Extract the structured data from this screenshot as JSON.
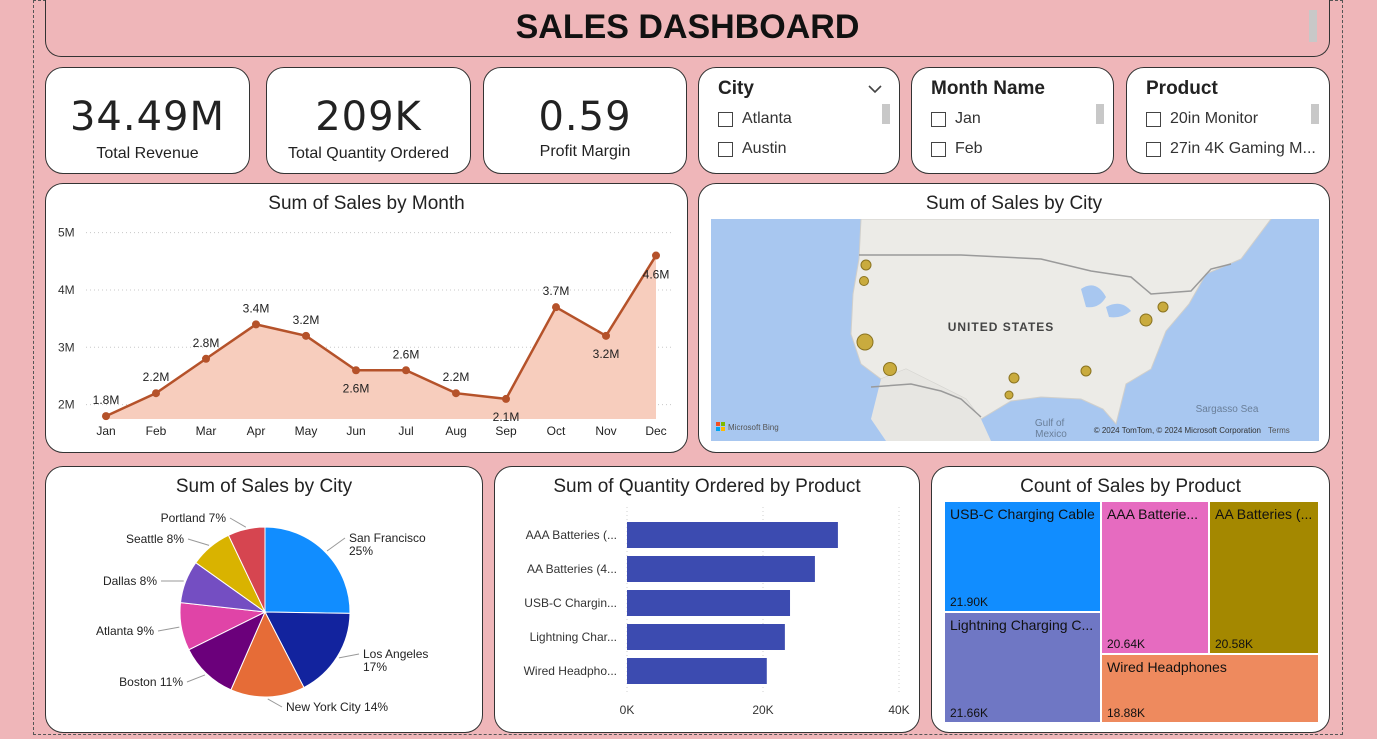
{
  "header": {
    "title": "SALES DASHBOARD"
  },
  "kpis": [
    {
      "value": "34.49M",
      "label": "Total Revenue"
    },
    {
      "value": "209K",
      "label": "Total Quantity Ordered"
    },
    {
      "value": "0.59",
      "label": "Profit Margin"
    }
  ],
  "slicers": {
    "city": {
      "title": "City",
      "items": [
        "Atlanta",
        "Austin"
      ]
    },
    "month": {
      "title": "Month Name",
      "items": [
        "Jan",
        "Feb"
      ]
    },
    "product": {
      "title": "Product",
      "items": [
        "20in Monitor",
        "27in 4K Gaming M..."
      ]
    }
  },
  "map": {
    "title": "Sum of Sales by City",
    "country_label": "UNITED STATES",
    "gulf_label": "Gulf of Mexico",
    "gulf_line1": "Gulf of",
    "gulf_line2": "Mexico",
    "sea_label": "Sargasso Sea",
    "bing_label": "Microsoft Bing",
    "copyright": "© 2024 TomTom, © 2024 Microsoft Corporation",
    "terms": "Terms"
  },
  "chart_data": [
    {
      "type": "area",
      "title": "Sum of Sales by Month",
      "categories": [
        "Jan",
        "Feb",
        "Mar",
        "Apr",
        "May",
        "Jun",
        "Jul",
        "Aug",
        "Sep",
        "Oct",
        "Nov",
        "Dec"
      ],
      "values": [
        1.8,
        2.2,
        2.8,
        3.4,
        3.2,
        2.6,
        2.6,
        2.2,
        2.1,
        3.7,
        3.2,
        4.6
      ],
      "labels": [
        "1.8M",
        "2.2M",
        "2.8M",
        "3.4M",
        "3.2M",
        "2.6M",
        "2.6M",
        "2.2M",
        "2.1M",
        "3.7M",
        "3.2M",
        "4.6M"
      ],
      "yticks": [
        "2M",
        "3M",
        "4M",
        "5M"
      ],
      "ytick_values": [
        2,
        3,
        4,
        5
      ],
      "ylim": [
        1.75,
        5.15
      ],
      "line_color": "#b5522a",
      "fill_color": "#f7cdbd"
    },
    {
      "type": "pie",
      "title": "Sum of Sales by City",
      "slices": [
        {
          "name": "San Francisco",
          "pct": 25,
          "label1": "San Francisco",
          "label2": "25%",
          "color": "#118dff"
        },
        {
          "name": "Los Angeles",
          "pct": 17,
          "label1": "Los Angeles",
          "label2": "17%",
          "color": "#12239e"
        },
        {
          "name": "New York City",
          "pct": 14,
          "label1": "New York City 14%",
          "label2": "",
          "color": "#e66c37"
        },
        {
          "name": "Boston",
          "pct": 11,
          "label1": "Boston 11%",
          "label2": "",
          "color": "#6b007b"
        },
        {
          "name": "Atlanta",
          "pct": 9,
          "label1": "Atlanta 9%",
          "label2": "",
          "color": "#e044a7"
        },
        {
          "name": "Dallas",
          "pct": 8,
          "label1": "Dallas 8%",
          "label2": "",
          "color": "#744ec2"
        },
        {
          "name": "Seattle",
          "pct": 8,
          "label1": "Seattle 8%",
          "label2": "",
          "color": "#d9b300"
        },
        {
          "name": "Portland",
          "pct": 7,
          "label1": "Portland 7%",
          "label2": "",
          "color": "#d64550"
        }
      ]
    },
    {
      "type": "bar",
      "title": "Sum of Quantity Ordered by Product",
      "categories": [
        "AAA Batteries (...",
        "AA Batteries (4...",
        "USB-C Chargin...",
        "Lightning Char...",
        "Wired Headpho..."
      ],
      "values": [
        31017,
        27635,
        23975,
        23217,
        20557
      ],
      "xticks": [
        "0K",
        "20K",
        "40K"
      ],
      "xtick_values": [
        0,
        20000,
        40000
      ],
      "xlim": [
        0,
        40000
      ],
      "color": "#3c4bb0"
    },
    {
      "type": "treemap",
      "title": "Count of Sales by Product",
      "items": [
        {
          "name": "USB-C Charging Cable",
          "value_label": "21.90K",
          "color": "#118dff"
        },
        {
          "name": "AAA Batterie...",
          "value_label": "20.64K",
          "color": "#e66bc0"
        },
        {
          "name": "AA Batteries (...",
          "value_label": "20.58K",
          "color": "#a48800"
        },
        {
          "name": "Lightning Charging C...",
          "value_label": "21.66K",
          "color": "#6f77c4"
        },
        {
          "name": "Wired Headphones",
          "value_label": "18.88K",
          "color": "#ee8a5e"
        }
      ]
    }
  ]
}
